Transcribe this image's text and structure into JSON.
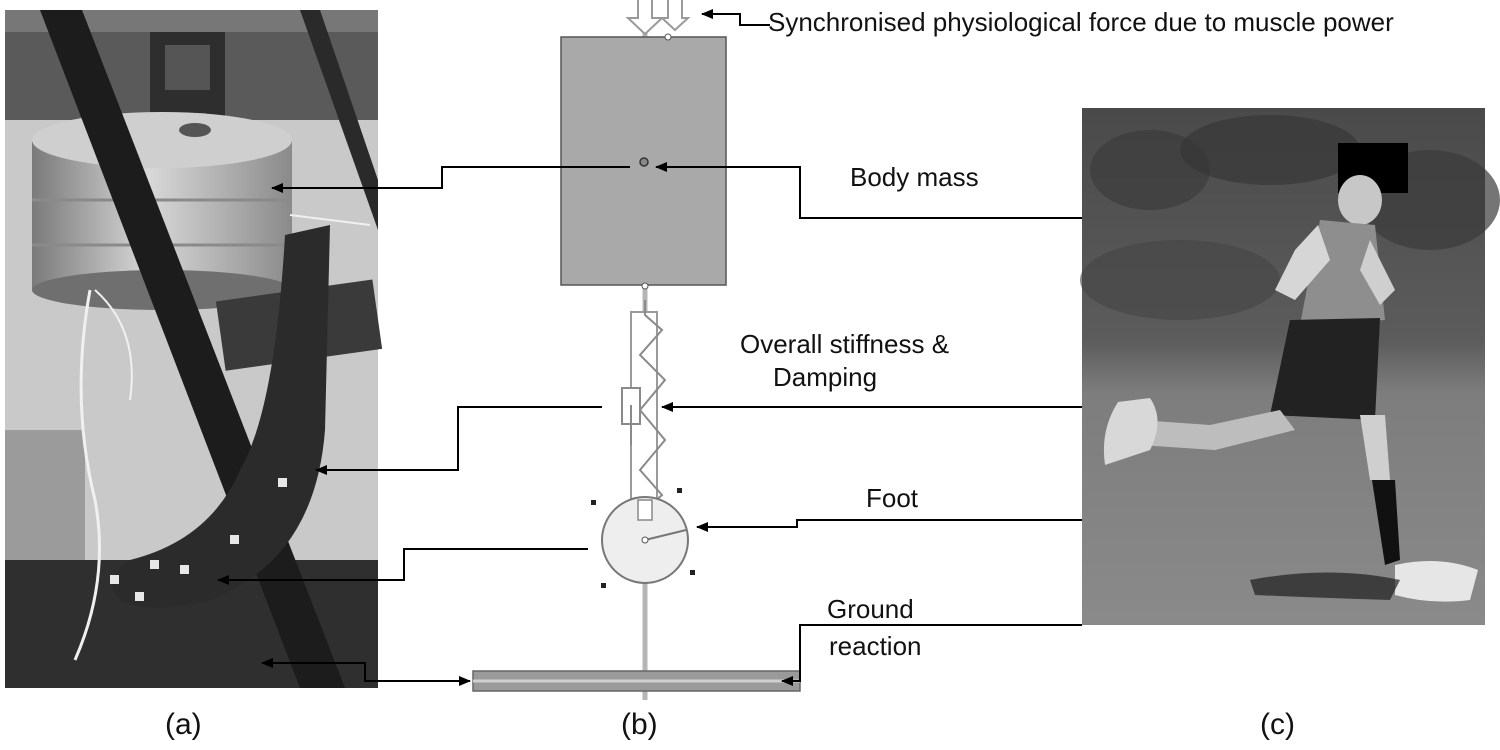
{
  "panels": {
    "a": {
      "caption": "(a)"
    },
    "b": {
      "caption": "(b)"
    },
    "c": {
      "caption": "(c)"
    }
  },
  "labels": {
    "force": "Synchronised physiological force due to muscle power",
    "body_mass": "Body mass",
    "stiffness_line1": "Overall stiffness &",
    "stiffness_line2": "Damping",
    "foot": "Foot",
    "ground_line1": "Ground",
    "ground_line2": "reaction"
  },
  "colors": {
    "body_block": "#a9a9a9",
    "ground_bar": "#9a9a9a",
    "arrow": "#000000"
  }
}
